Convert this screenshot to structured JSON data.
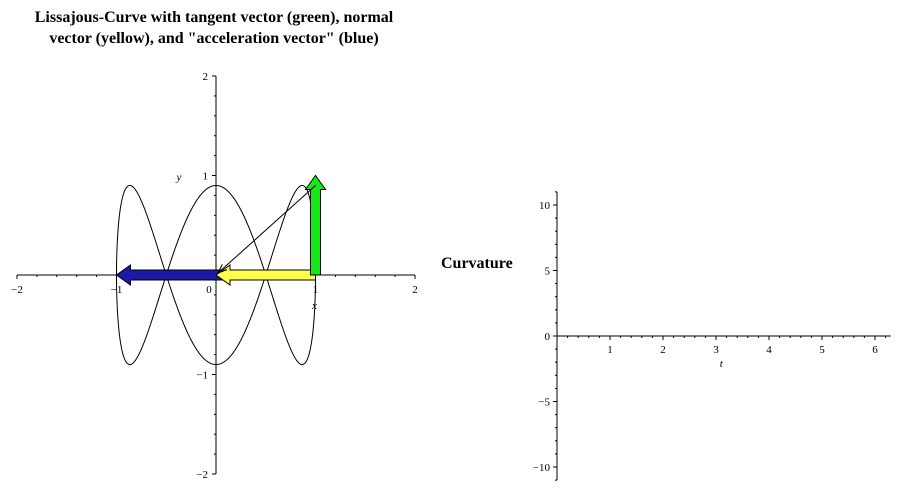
{
  "chart_data": [
    {
      "type": "line",
      "title_lines": [
        "Lissajous-Curve with tangent vector (green), normal",
        "vector (yellow), and \"acceleration vector\" (blue)"
      ],
      "xlabel": "x",
      "ylabel": "y",
      "xlim": [
        -2,
        2
      ],
      "ylim": [
        -2,
        2
      ],
      "xticks": [
        -2,
        -1,
        0,
        1,
        2
      ],
      "xtick_labels": [
        "−2",
        "−1",
        "0",
        "1",
        "2"
      ],
      "yticks": [
        -2,
        -1,
        1,
        2
      ],
      "ytick_labels": [
        "−2",
        "−1",
        "1",
        "2"
      ],
      "curve": {
        "name": "Lissajous curve",
        "x": "cos(t)",
        "y": "0.9·sin(3t)",
        "t_range": [
          0,
          6.2832
        ],
        "color": "#000000"
      },
      "point": [
        1,
        0
      ],
      "vectors": [
        {
          "name": "tangent vector",
          "color_name": "green",
          "color": "#19e619",
          "from": [
            1,
            0
          ],
          "to": [
            1,
            1
          ]
        },
        {
          "name": "normal vector",
          "color_name": "yellow",
          "color": "#ffff4d",
          "from": [
            1,
            0
          ],
          "to": [
            0,
            0
          ]
        },
        {
          "name": "acceleration vector",
          "color_name": "blue",
          "color": "#1a1aa6",
          "from": [
            1,
            0
          ],
          "to": [
            -1,
            0
          ]
        }
      ],
      "thin_arrow": {
        "from": [
          1,
          0.9
        ],
        "to": [
          0.02,
          0.02
        ]
      }
    },
    {
      "type": "line",
      "ylabel": "Curvature",
      "xlabel": "t",
      "xlim": [
        0,
        6.3
      ],
      "ylim": [
        -11,
        11
      ],
      "xticks": [
        1,
        2,
        3,
        4,
        5,
        6
      ],
      "xtick_labels": [
        "1",
        "2",
        "3",
        "4",
        "5",
        "6"
      ],
      "yticks": [
        -10,
        -5,
        0,
        5,
        10
      ],
      "ytick_labels": [
        "−10",
        "−5",
        "0",
        "5",
        "10"
      ],
      "series": []
    }
  ]
}
